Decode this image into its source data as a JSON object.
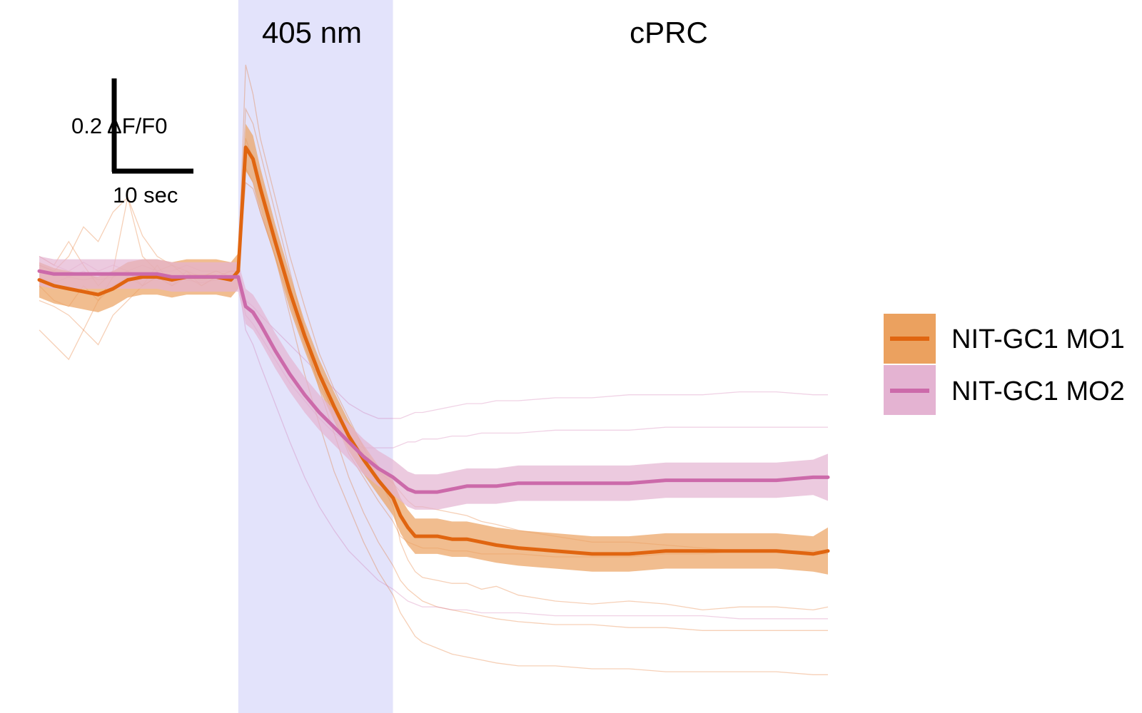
{
  "chart_data": {
    "type": "line",
    "title": "",
    "xlabel": "",
    "ylabel": "",
    "xlim": [
      0,
      107
    ],
    "ylim": [
      -1.5,
      0.92
    ],
    "grid": false,
    "legend_position": "right",
    "regions": [
      {
        "label": "405 nm",
        "x_start": 27,
        "x_end": 48,
        "color": "#e3e3fb"
      },
      {
        "label": "cPRC",
        "x_start": 48,
        "x_end": 107,
        "color": "#ffffff"
      }
    ],
    "scale_bar": {
      "y_value": 0.2,
      "y_label": "0.2 ΔF/F0",
      "x_value": 10,
      "x_label": "10 sec"
    },
    "x": [
      0,
      2,
      4,
      6,
      8,
      10,
      12,
      14,
      16,
      18,
      20,
      22,
      24,
      26,
      27,
      28,
      29,
      30,
      32,
      34,
      36,
      38,
      40,
      42,
      44,
      46,
      48,
      49,
      50,
      51,
      52,
      54,
      56,
      58,
      60,
      62,
      65,
      70,
      75,
      80,
      85,
      90,
      95,
      100,
      105,
      107
    ],
    "series": [
      {
        "name": "NIT-GC1 MO1",
        "color": "#e06510",
        "band_color": "#eba15f",
        "values": [
          -0.03,
          -0.05,
          -0.06,
          -0.07,
          -0.08,
          -0.06,
          -0.03,
          -0.02,
          -0.02,
          -0.03,
          -0.02,
          -0.02,
          -0.02,
          -0.03,
          0.0,
          0.42,
          0.38,
          0.28,
          0.1,
          -0.07,
          -0.22,
          -0.35,
          -0.46,
          -0.56,
          -0.64,
          -0.71,
          -0.77,
          -0.83,
          -0.87,
          -0.9,
          -0.9,
          -0.9,
          -0.91,
          -0.91,
          -0.92,
          -0.93,
          -0.94,
          -0.95,
          -0.96,
          -0.96,
          -0.95,
          -0.95,
          -0.95,
          -0.95,
          -0.96,
          -0.95
        ],
        "errors": [
          0.06,
          0.06,
          0.06,
          0.06,
          0.06,
          0.06,
          0.06,
          0.06,
          0.06,
          0.06,
          0.06,
          0.06,
          0.06,
          0.06,
          0.06,
          0.08,
          0.08,
          0.07,
          0.06,
          0.06,
          0.05,
          0.05,
          0.05,
          0.05,
          0.05,
          0.05,
          0.06,
          0.06,
          0.06,
          0.06,
          0.06,
          0.06,
          0.06,
          0.06,
          0.06,
          0.06,
          0.06,
          0.06,
          0.06,
          0.06,
          0.06,
          0.06,
          0.06,
          0.06,
          0.06,
          0.08
        ]
      },
      {
        "name": "NIT-GC1 MO2",
        "color": "#cc6aaa",
        "band_color": "#e4b3d2",
        "values": [
          0.0,
          -0.01,
          -0.01,
          -0.01,
          -0.01,
          -0.01,
          -0.01,
          -0.01,
          -0.01,
          -0.02,
          -0.02,
          -0.02,
          -0.02,
          -0.02,
          -0.02,
          -0.12,
          -0.14,
          -0.18,
          -0.27,
          -0.35,
          -0.42,
          -0.48,
          -0.53,
          -0.58,
          -0.63,
          -0.67,
          -0.7,
          -0.72,
          -0.74,
          -0.75,
          -0.75,
          -0.75,
          -0.74,
          -0.73,
          -0.73,
          -0.73,
          -0.72,
          -0.72,
          -0.72,
          -0.72,
          -0.71,
          -0.71,
          -0.71,
          -0.71,
          -0.7,
          -0.7
        ],
        "errors": [
          0.05,
          0.05,
          0.05,
          0.05,
          0.05,
          0.05,
          0.05,
          0.05,
          0.05,
          0.05,
          0.05,
          0.05,
          0.05,
          0.05,
          0.05,
          0.06,
          0.06,
          0.06,
          0.06,
          0.06,
          0.06,
          0.06,
          0.06,
          0.06,
          0.06,
          0.06,
          0.06,
          0.06,
          0.06,
          0.06,
          0.06,
          0.06,
          0.06,
          0.06,
          0.06,
          0.06,
          0.06,
          0.06,
          0.06,
          0.06,
          0.06,
          0.06,
          0.06,
          0.06,
          0.06,
          0.08
        ]
      }
    ],
    "individual_traces": [
      {
        "color": "#e06510",
        "values": [
          0.05,
          0.02,
          0.1,
          0.02,
          -0.05,
          0.0,
          0.25,
          0.05,
          0.0,
          0.02,
          -0.02,
          -0.02,
          0.0,
          -0.02,
          0.0,
          0.7,
          0.6,
          0.45,
          0.25,
          0.05,
          -0.12,
          -0.28,
          -0.4,
          -0.5,
          -0.6,
          -0.7,
          -0.8,
          -0.92,
          -0.98,
          -1.02,
          -1.04,
          -1.05,
          -1.06,
          -1.06,
          -1.08,
          -1.07,
          -1.1,
          -1.12,
          -1.13,
          -1.12,
          -1.13,
          -1.15,
          -1.14,
          -1.14,
          -1.15,
          -1.14
        ]
      },
      {
        "color": "#e06510",
        "values": [
          -0.05,
          -0.1,
          -0.12,
          -0.05,
          -0.1,
          -0.02,
          0.0,
          -0.05,
          -0.02,
          -0.05,
          0.0,
          -0.05,
          -0.02,
          0.0,
          0.0,
          0.55,
          0.5,
          0.4,
          0.2,
          0.0,
          -0.2,
          -0.35,
          -0.5,
          -0.62,
          -0.7,
          -0.78,
          -0.85,
          -0.9,
          -0.92,
          -0.93,
          -0.94,
          -0.94,
          -0.95,
          -0.95,
          -0.96,
          -0.96,
          -0.96,
          -0.97,
          -0.97,
          -0.97,
          -0.96,
          -0.96,
          -0.95,
          -0.95,
          -0.95,
          -0.95
        ]
      },
      {
        "color": "#e06510",
        "values": [
          -0.2,
          -0.25,
          -0.3,
          -0.2,
          -0.25,
          -0.15,
          -0.1,
          -0.05,
          0.02,
          -0.05,
          -0.02,
          -0.05,
          -0.02,
          0.0,
          0.0,
          0.45,
          0.38,
          0.3,
          0.12,
          -0.05,
          -0.22,
          -0.4,
          -0.55,
          -0.7,
          -0.82,
          -0.92,
          -1.0,
          -1.05,
          -1.08,
          -1.1,
          -1.12,
          -1.14,
          -1.15,
          -1.16,
          -1.17,
          -1.18,
          -1.19,
          -1.2,
          -1.2,
          -1.21,
          -1.21,
          -1.22,
          -1.22,
          -1.22,
          -1.22,
          -1.22
        ]
      },
      {
        "color": "#e06510",
        "values": [
          0.02,
          0.0,
          0.05,
          0.15,
          0.1,
          0.2,
          0.25,
          0.12,
          0.05,
          0.02,
          0.0,
          -0.02,
          0.0,
          -0.02,
          0.0,
          0.35,
          0.3,
          0.2,
          0.05,
          -0.1,
          -0.25,
          -0.38,
          -0.48,
          -0.56,
          -0.62,
          -0.68,
          -0.72,
          -0.75,
          -0.78,
          -0.8,
          -0.8,
          -0.81,
          -0.82,
          -0.83,
          -0.85,
          -0.86,
          -0.88,
          -0.9,
          -0.92,
          -0.92,
          -0.93,
          -0.94,
          -0.95,
          -0.95,
          -0.96,
          -0.96
        ]
      },
      {
        "color": "#e06510",
        "values": [
          -0.1,
          -0.12,
          -0.15,
          -0.2,
          -0.1,
          -0.05,
          -0.02,
          -0.05,
          -0.02,
          -0.05,
          -0.02,
          -0.03,
          -0.02,
          -0.02,
          0.0,
          0.3,
          0.28,
          0.2,
          0.05,
          -0.15,
          -0.35,
          -0.52,
          -0.68,
          -0.8,
          -0.92,
          -1.02,
          -1.1,
          -1.16,
          -1.2,
          -1.24,
          -1.26,
          -1.28,
          -1.3,
          -1.31,
          -1.32,
          -1.33,
          -1.34,
          -1.34,
          -1.35,
          -1.35,
          -1.36,
          -1.36,
          -1.36,
          -1.36,
          -1.37,
          -1.37
        ]
      },
      {
        "color": "#cc6aaa",
        "values": [
          0.05,
          0.02,
          0.0,
          0.03,
          0.0,
          0.02,
          0.0,
          0.02,
          0.0,
          0.0,
          0.02,
          0.0,
          0.0,
          0.0,
          0.0,
          -0.1,
          -0.12,
          -0.15,
          -0.2,
          -0.25,
          -0.3,
          -0.35,
          -0.4,
          -0.45,
          -0.48,
          -0.5,
          -0.5,
          -0.5,
          -0.49,
          -0.48,
          -0.48,
          -0.47,
          -0.46,
          -0.45,
          -0.45,
          -0.44,
          -0.44,
          -0.43,
          -0.43,
          -0.42,
          -0.42,
          -0.42,
          -0.41,
          -0.41,
          -0.42,
          -0.42
        ]
      },
      {
        "color": "#cc6aaa",
        "values": [
          -0.02,
          -0.04,
          -0.02,
          -0.03,
          -0.02,
          0.0,
          -0.02,
          -0.01,
          -0.02,
          -0.02,
          -0.03,
          -0.02,
          -0.03,
          -0.02,
          -0.02,
          -0.15,
          -0.18,
          -0.22,
          -0.3,
          -0.38,
          -0.44,
          -0.5,
          -0.55,
          -0.58,
          -0.6,
          -0.6,
          -0.6,
          -0.59,
          -0.58,
          -0.58,
          -0.57,
          -0.57,
          -0.56,
          -0.56,
          -0.55,
          -0.55,
          -0.55,
          -0.54,
          -0.54,
          -0.54,
          -0.53,
          -0.53,
          -0.53,
          -0.53,
          -0.53,
          -0.53
        ]
      },
      {
        "color": "#cc6aaa",
        "values": [
          0.02,
          0.0,
          -0.02,
          0.0,
          -0.03,
          -0.02,
          0.0,
          -0.02,
          -0.03,
          -0.02,
          -0.03,
          -0.04,
          -0.03,
          -0.03,
          -0.03,
          -0.2,
          -0.25,
          -0.32,
          -0.45,
          -0.58,
          -0.7,
          -0.8,
          -0.88,
          -0.95,
          -1.0,
          -1.05,
          -1.08,
          -1.1,
          -1.12,
          -1.13,
          -1.14,
          -1.14,
          -1.15,
          -1.15,
          -1.16,
          -1.16,
          -1.16,
          -1.17,
          -1.17,
          -1.17,
          -1.17,
          -1.17,
          -1.18,
          -1.18,
          -1.18,
          -1.18
        ]
      }
    ]
  },
  "legend": {
    "items": [
      {
        "label": "NIT-GC1 MO1",
        "color": "#e06510",
        "band_color": "#eba15f"
      },
      {
        "label": "NIT-GC1 MO2",
        "color": "#cc6aaa",
        "band_color": "#e4b3d2"
      }
    ]
  }
}
